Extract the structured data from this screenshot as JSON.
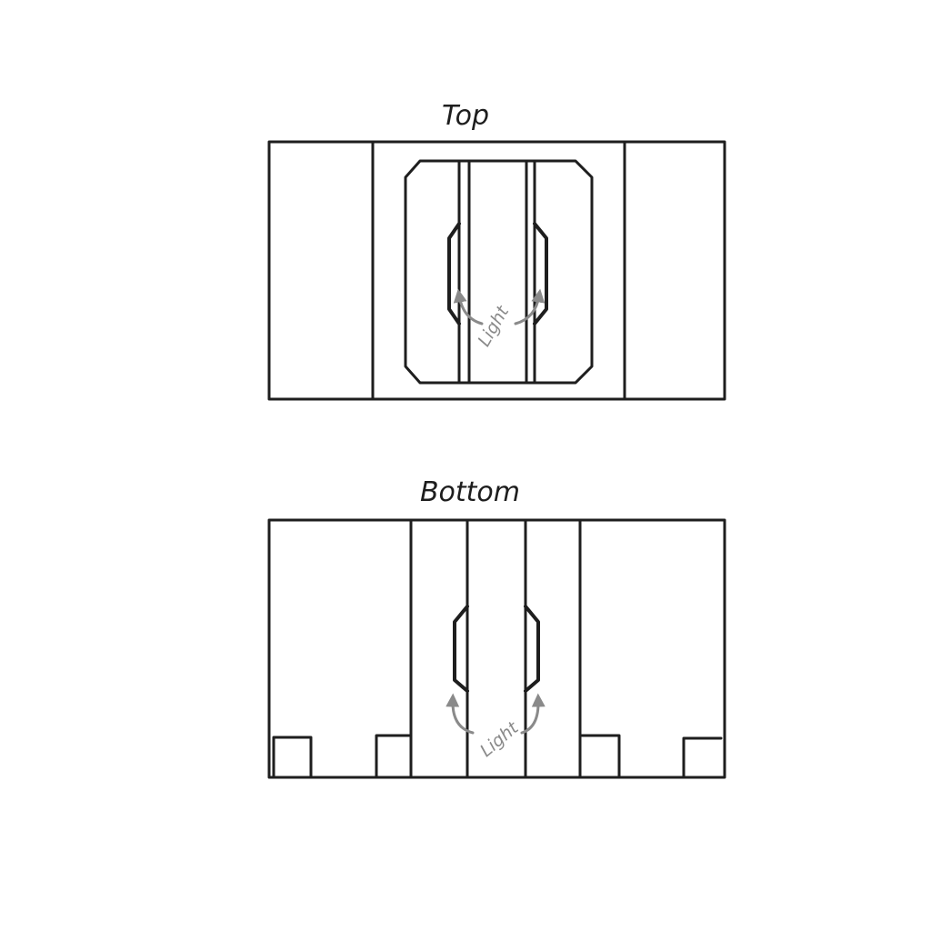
{
  "top_view": {
    "title": "Top",
    "annotation": "Light"
  },
  "bottom_view": {
    "title": "Bottom",
    "annotation": "Light"
  }
}
